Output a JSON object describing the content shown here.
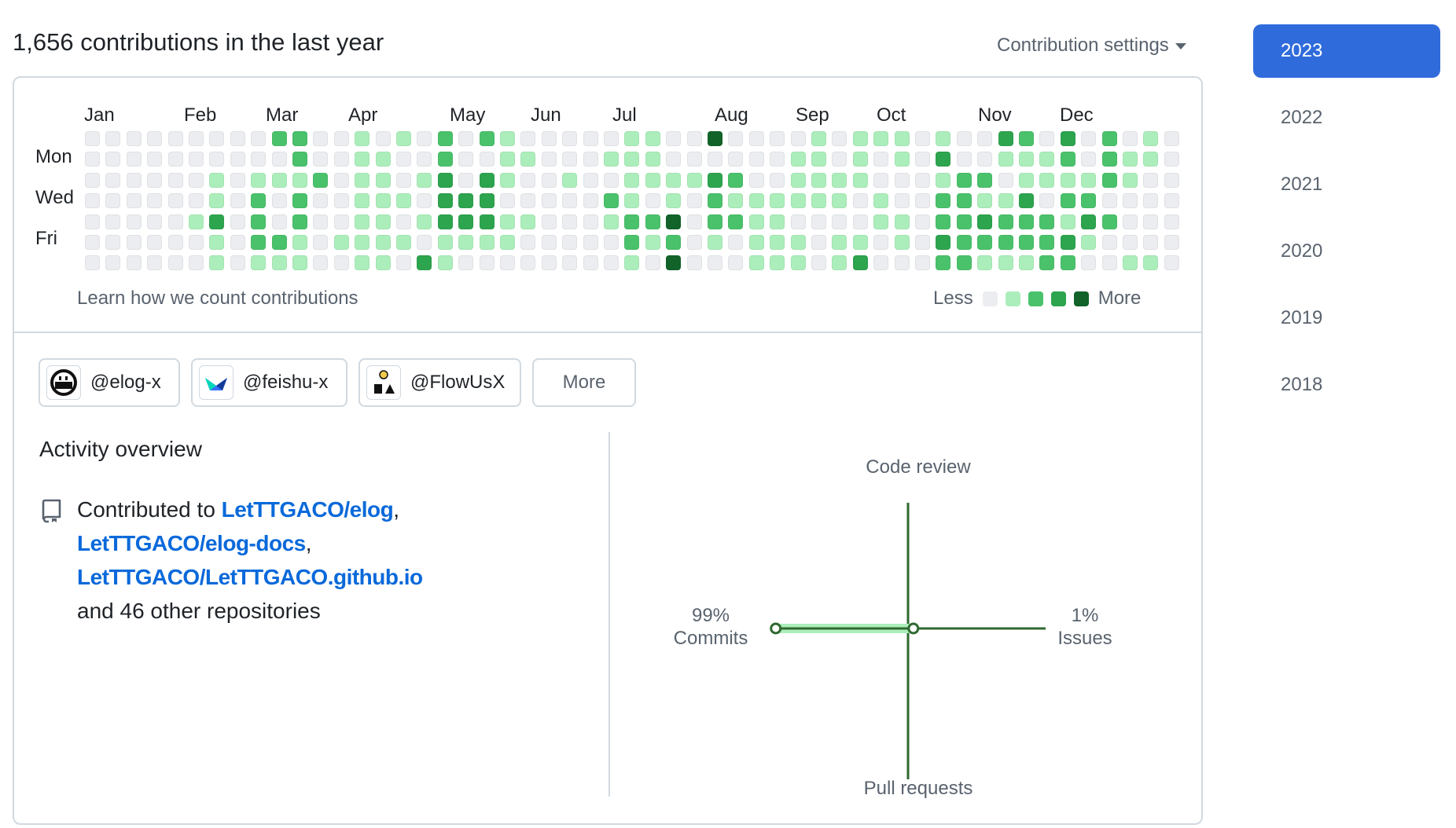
{
  "header": {
    "title": "1,656 contributions in the last year",
    "settings_label": "Contribution settings"
  },
  "calendar": {
    "months": [
      "Jan",
      "Feb",
      "Mar",
      "Apr",
      "May",
      "Jun",
      "Jul",
      "Aug",
      "Sep",
      "Oct",
      "Nov",
      "Dec"
    ],
    "day_labels": [
      "Mon",
      "Wed",
      "Fri"
    ],
    "learn_link": "Learn how we count contributions",
    "legend_less": "Less",
    "legend_more": "More",
    "colors": [
      "#ebedf0",
      "#aceebb",
      "#4ac26b",
      "#2da44e",
      "#116329"
    ],
    "weeks": [
      [
        0,
        0,
        0,
        0,
        0,
        0,
        0
      ],
      [
        0,
        0,
        0,
        0,
        0,
        0,
        0
      ],
      [
        0,
        0,
        0,
        0,
        0,
        0,
        0
      ],
      [
        0,
        0,
        0,
        0,
        0,
        0,
        0
      ],
      [
        0,
        0,
        0,
        0,
        0,
        0,
        0
      ],
      [
        0,
        0,
        0,
        0,
        1,
        0,
        0
      ],
      [
        0,
        0,
        1,
        1,
        3,
        1,
        1
      ],
      [
        0,
        0,
        0,
        0,
        0,
        0,
        0
      ],
      [
        0,
        0,
        1,
        2,
        2,
        2,
        1
      ],
      [
        2,
        0,
        1,
        0,
        0,
        2,
        1
      ],
      [
        2,
        2,
        1,
        2,
        2,
        1,
        1
      ],
      [
        0,
        0,
        2,
        0,
        0,
        0,
        0
      ],
      [
        0,
        0,
        0,
        0,
        0,
        1,
        0
      ],
      [
        1,
        1,
        1,
        1,
        1,
        1,
        1
      ],
      [
        0,
        1,
        1,
        1,
        1,
        1,
        1
      ],
      [
        1,
        0,
        0,
        1,
        0,
        1,
        0
      ],
      [
        0,
        0,
        1,
        0,
        1,
        0,
        3
      ],
      [
        2,
        2,
        3,
        3,
        3,
        1,
        1
      ],
      [
        0,
        0,
        0,
        3,
        3,
        1,
        0
      ],
      [
        2,
        0,
        3,
        3,
        3,
        1,
        0
      ],
      [
        1,
        1,
        1,
        0,
        1,
        1,
        0
      ],
      [
        0,
        1,
        0,
        0,
        1,
        0,
        0
      ],
      [
        0,
        0,
        0,
        0,
        0,
        0,
        0
      ],
      [
        0,
        0,
        1,
        0,
        0,
        0,
        0
      ],
      [
        0,
        0,
        0,
        0,
        0,
        0,
        0
      ],
      [
        0,
        1,
        0,
        2,
        1,
        0,
        0
      ],
      [
        1,
        1,
        1,
        1,
        2,
        2,
        1
      ],
      [
        1,
        1,
        1,
        0,
        2,
        1,
        0
      ],
      [
        0,
        0,
        1,
        1,
        4,
        2,
        4
      ],
      [
        0,
        0,
        1,
        0,
        0,
        0,
        0
      ],
      [
        4,
        0,
        3,
        2,
        2,
        1,
        0
      ],
      [
        0,
        0,
        2,
        1,
        2,
        0,
        0
      ],
      [
        0,
        0,
        0,
        1,
        1,
        1,
        1
      ],
      [
        0,
        0,
        0,
        1,
        1,
        1,
        1
      ],
      [
        0,
        1,
        1,
        1,
        0,
        1,
        1
      ],
      [
        1,
        1,
        1,
        1,
        0,
        0,
        0
      ],
      [
        0,
        0,
        1,
        1,
        0,
        1,
        1
      ],
      [
        1,
        1,
        1,
        0,
        0,
        1,
        3
      ],
      [
        1,
        0,
        0,
        1,
        1,
        0,
        0
      ],
      [
        1,
        1,
        0,
        0,
        1,
        1,
        0
      ],
      [
        0,
        0,
        0,
        0,
        0,
        0,
        0
      ],
      [
        1,
        3,
        1,
        2,
        2,
        3,
        2
      ],
      [
        0,
        0,
        2,
        2,
        2,
        2,
        2
      ],
      [
        0,
        0,
        2,
        1,
        3,
        2,
        1
      ],
      [
        3,
        1,
        0,
        1,
        2,
        2,
        1
      ],
      [
        2,
        1,
        1,
        3,
        2,
        2,
        1
      ],
      [
        0,
        1,
        1,
        0,
        2,
        2,
        2
      ],
      [
        3,
        2,
        1,
        2,
        1,
        3,
        2
      ],
      [
        0,
        0,
        1,
        2,
        3,
        1,
        0
      ],
      [
        2,
        2,
        2,
        0,
        2,
        0,
        0
      ],
      [
        0,
        1,
        1,
        0,
        0,
        0,
        1
      ],
      [
        1,
        1,
        0,
        0,
        0,
        0,
        1
      ],
      [
        0,
        0,
        0,
        0,
        0,
        0,
        0
      ]
    ]
  },
  "orgs": [
    {
      "name": "@elog-x",
      "icon": "elog-avatar-icon"
    },
    {
      "name": "@feishu-x",
      "icon": "feishu-avatar-icon"
    },
    {
      "name": "@FlowUsX",
      "icon": "flowus-avatar-icon"
    }
  ],
  "orgs_more": "More",
  "activity": {
    "title": "Activity overview",
    "contributed_to": "Contributed to",
    "repos": [
      "LetTTGACO/elog",
      "LetTTGACO/elog-docs",
      "LetTTGACO/LetTTGACO.github.io"
    ],
    "others": "and 46 other repositories",
    "axes": {
      "top": "Code review",
      "bottom": "Pull requests",
      "left_pct": "99%",
      "left_label": "Commits",
      "right_pct": "1%",
      "right_label": "Issues"
    },
    "values": {
      "commits": 0.99,
      "issues": 0.01,
      "code_review": 0,
      "pull_requests": 0
    },
    "accent": "#2f6930"
  },
  "years": [
    "2023",
    "2022",
    "2021",
    "2020",
    "2019",
    "2018"
  ],
  "active_year": "2023"
}
